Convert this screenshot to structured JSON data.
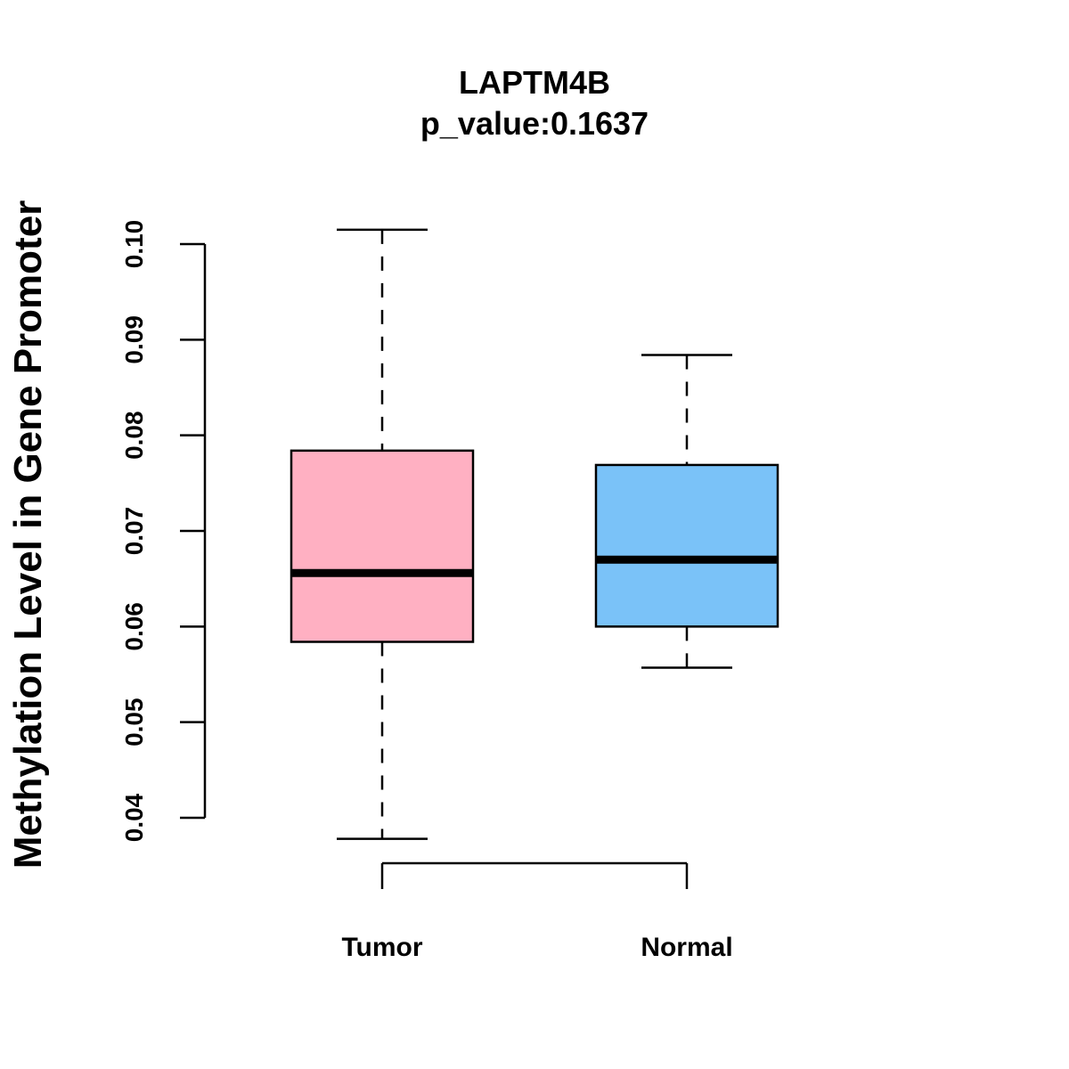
{
  "chart_data": {
    "type": "boxplot",
    "title": "LAPTM4B",
    "subtitle": "p_value:0.1637",
    "xlabel": "",
    "ylabel": "Methylation Level in Gene Promoter",
    "ylim": [
      0.04,
      0.1
    ],
    "yticks": [
      0.04,
      0.05,
      0.06,
      0.07,
      0.08,
      0.09,
      0.1
    ],
    "ytick_labels": [
      "0.04",
      "0.05",
      "0.06",
      "0.07",
      "0.08",
      "0.09",
      "0.10"
    ],
    "categories": [
      "Tumor",
      "Normal"
    ],
    "boxes": [
      {
        "name": "Tumor",
        "min": 0.0378,
        "q1": 0.0584,
        "median": 0.0656,
        "q3": 0.0784,
        "max": 0.1015,
        "color": "#FFB0C2"
      },
      {
        "name": "Normal",
        "min": 0.0557,
        "q1": 0.06,
        "median": 0.067,
        "q3": 0.0769,
        "max": 0.0884,
        "color": "#7AC2F8"
      }
    ],
    "grid": false,
    "legend": "none"
  }
}
